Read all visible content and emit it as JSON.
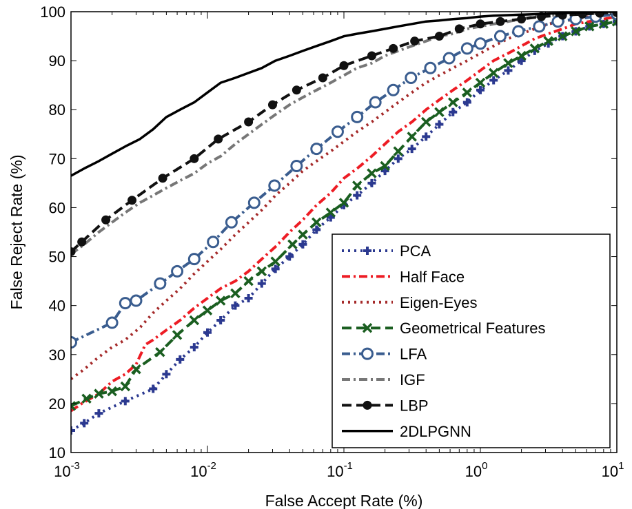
{
  "chart_data": {
    "type": "line",
    "xlabel": "False Accept Rate (%)",
    "ylabel": "False Reject Rate (%)",
    "x_scale": "log",
    "xlim": [
      0.001,
      10
    ],
    "ylim": [
      10,
      100
    ],
    "x_ticks": [
      {
        "value": 0.001,
        "base": "10",
        "exp": "-3"
      },
      {
        "value": 0.01,
        "base": "10",
        "exp": "-2"
      },
      {
        "value": 0.1,
        "base": "10",
        "exp": "-1"
      },
      {
        "value": 1,
        "base": "10",
        "exp": "0"
      },
      {
        "value": 10,
        "base": "10",
        "exp": "1"
      }
    ],
    "y_ticks": [
      10,
      20,
      30,
      40,
      50,
      60,
      70,
      80,
      90,
      100
    ],
    "legend_position": "bottom-right",
    "series": [
      {
        "name": "PCA",
        "color": "#2b3990",
        "dash": "dotted",
        "marker": "plus",
        "x": [
          0.001,
          0.00125,
          0.0016,
          0.0025,
          0.004,
          0.005,
          0.0063,
          0.008,
          0.01,
          0.0125,
          0.016,
          0.02,
          0.025,
          0.0315,
          0.04,
          0.05,
          0.063,
          0.08,
          0.1,
          0.125,
          0.16,
          0.2,
          0.25,
          0.315,
          0.4,
          0.5,
          0.63,
          0.8,
          1,
          1.25,
          1.6,
          2,
          2.5,
          3.15,
          4,
          5,
          6.3,
          8,
          10
        ],
        "y": [
          14.5,
          16,
          18,
          20.5,
          23,
          26,
          29,
          31.5,
          34.5,
          37,
          40,
          41.5,
          44.5,
          47.5,
          50,
          52.5,
          55.5,
          58,
          60.5,
          62.5,
          65,
          67.5,
          70,
          72,
          74.5,
          77,
          79.5,
          81.5,
          84,
          86,
          88,
          90,
          92,
          93.5,
          95,
          96,
          97,
          97.5,
          98
        ]
      },
      {
        "name": "Half Face",
        "color": "#ed1c24",
        "dash": "dashdot",
        "marker": "none",
        "x": [
          0.001,
          0.0012,
          0.0016,
          0.002,
          0.0025,
          0.003,
          0.0035,
          0.004,
          0.005,
          0.0063,
          0.008,
          0.01,
          0.0125,
          0.016,
          0.02,
          0.025,
          0.0315,
          0.04,
          0.05,
          0.063,
          0.08,
          0.1,
          0.125,
          0.16,
          0.2,
          0.25,
          0.315,
          0.4,
          0.5,
          0.63,
          0.8,
          1,
          1.25,
          1.6,
          2,
          2.5,
          3.15,
          4,
          5,
          6.3,
          8,
          10
        ],
        "y": [
          18.5,
          20,
          22,
          24.5,
          26,
          28,
          32,
          33,
          35,
          37,
          39.5,
          41.5,
          43.5,
          45,
          47,
          49.5,
          52,
          55,
          57.5,
          60.5,
          63,
          66,
          68,
          70.5,
          73,
          75.5,
          77.5,
          80,
          82,
          84,
          86,
          88,
          90,
          91.5,
          93,
          94.5,
          95.5,
          96.5,
          97.5,
          98,
          98.5,
          99
        ]
      },
      {
        "name": "Eigen-Eyes",
        "color": "#a52a2a",
        "dash": "dotted",
        "marker": "none",
        "x": [
          0.001,
          0.00125,
          0.0016,
          0.002,
          0.0025,
          0.0032,
          0.004,
          0.005,
          0.0063,
          0.008,
          0.01,
          0.0125,
          0.016,
          0.02,
          0.025,
          0.0315,
          0.04,
          0.05,
          0.063,
          0.08,
          0.1,
          0.125,
          0.16,
          0.2,
          0.25,
          0.315,
          0.4,
          0.5,
          0.63,
          0.8,
          1,
          1.25,
          1.6,
          2,
          2.5,
          3.15,
          4,
          5,
          6.3,
          8,
          10
        ],
        "y": [
          25,
          27,
          29.5,
          31.5,
          33,
          35.5,
          38.5,
          41,
          43.5,
          46.5,
          49,
          51.5,
          54.5,
          57,
          59.5,
          62.5,
          65,
          67.5,
          69.5,
          71.5,
          73.5,
          75.5,
          77.5,
          79.5,
          81.5,
          83.5,
          85.5,
          87,
          88.5,
          90,
          91.5,
          93,
          94.5,
          95.5,
          96.5,
          97.5,
          98,
          98.5,
          99,
          99.2,
          99.5
        ]
      },
      {
        "name": "Geometrical Features",
        "color": "#1a5e20",
        "dash": "dashed",
        "marker": "x",
        "x": [
          0.001,
          0.0013,
          0.0016,
          0.002,
          0.0025,
          0.003,
          0.0045,
          0.006,
          0.008,
          0.01,
          0.0125,
          0.016,
          0.02,
          0.025,
          0.0315,
          0.042,
          0.05,
          0.063,
          0.08,
          0.1,
          0.125,
          0.16,
          0.2,
          0.25,
          0.315,
          0.4,
          0.5,
          0.63,
          0.8,
          1,
          1.25,
          1.6,
          2,
          2.5,
          3.15,
          4,
          5,
          6.3,
          8,
          10
        ],
        "y": [
          19.5,
          21,
          22,
          22.5,
          23.5,
          27,
          30.5,
          34,
          37,
          39,
          41,
          42.5,
          45,
          47,
          49,
          52.5,
          54.5,
          57,
          59,
          61,
          64.5,
          67,
          68.5,
          71.5,
          74.5,
          77.5,
          79.5,
          81.5,
          83.5,
          85.5,
          87.5,
          89.5,
          91,
          92.5,
          94,
          95,
          96,
          97,
          97.5,
          98
        ]
      },
      {
        "name": "LFA",
        "color": "#3a5d8f",
        "dash": "dashdot",
        "marker": "circle",
        "x": [
          0.001,
          0.002,
          0.0025,
          0.003,
          0.0045,
          0.006,
          0.008,
          0.011,
          0.015,
          0.022,
          0.031,
          0.045,
          0.063,
          0.09,
          0.125,
          0.17,
          0.23,
          0.31,
          0.43,
          0.59,
          0.8,
          1,
          1.4,
          1.9,
          2.7,
          3.7,
          5,
          7,
          10
        ],
        "y": [
          32.5,
          36.5,
          40.5,
          41,
          44.5,
          47,
          49.5,
          53,
          57,
          61,
          64.5,
          68.5,
          72,
          75.5,
          78.5,
          81.5,
          84,
          86.5,
          88.5,
          90.5,
          92.5,
          93.5,
          95,
          96,
          97,
          98,
          98.5,
          99,
          99.5
        ]
      },
      {
        "name": "IGF",
        "color": "#777777",
        "dash": "dashdot",
        "marker": "none",
        "x": [
          0.001,
          0.00125,
          0.0016,
          0.002,
          0.0025,
          0.0032,
          0.004,
          0.005,
          0.0063,
          0.008,
          0.01,
          0.0125,
          0.016,
          0.02,
          0.025,
          0.0315,
          0.04,
          0.05,
          0.063,
          0.08,
          0.1,
          0.125,
          0.16,
          0.2,
          0.25,
          0.315,
          0.4,
          0.5,
          0.63,
          0.8,
          1,
          1.25,
          1.6,
          2,
          2.5,
          3.15,
          4,
          5,
          6.3,
          8,
          10
        ],
        "y": [
          50.5,
          52.5,
          55,
          57,
          59,
          61,
          62.5,
          64,
          65.5,
          67,
          69,
          70.5,
          73,
          75,
          77,
          79,
          81,
          82.5,
          84,
          85.5,
          87,
          88.5,
          89.5,
          91,
          92,
          93,
          94,
          95,
          95.5,
          96.5,
          97,
          97.5,
          98,
          98.5,
          99,
          99.2,
          99.4,
          99.5,
          99.6,
          99.8,
          100
        ]
      },
      {
        "name": "LBP",
        "color": "#111111",
        "dash": "dashed",
        "marker": "dot",
        "x": [
          0.001,
          0.0012,
          0.0018,
          0.0028,
          0.0047,
          0.008,
          0.012,
          0.02,
          0.03,
          0.045,
          0.07,
          0.1,
          0.16,
          0.23,
          0.33,
          0.5,
          0.7,
          1,
          1.4,
          2,
          2.8,
          4,
          5.6,
          7.5,
          10
        ],
        "y": [
          51,
          53,
          57.5,
          61.5,
          66,
          70,
          74,
          77.5,
          81,
          84,
          86.5,
          89,
          91,
          92.5,
          94,
          95,
          96.5,
          97.5,
          98,
          98.5,
          99,
          99.3,
          99.5,
          99.7,
          99.8
        ]
      },
      {
        "name": "2DLPGNN",
        "color": "#000000",
        "dash": "solid",
        "marker": "none",
        "x": [
          0.001,
          0.00125,
          0.0016,
          0.002,
          0.0025,
          0.0032,
          0.004,
          0.005,
          0.0063,
          0.008,
          0.01,
          0.0125,
          0.016,
          0.02,
          0.025,
          0.0315,
          0.04,
          0.05,
          0.063,
          0.08,
          0.1,
          0.125,
          0.16,
          0.2,
          0.25,
          0.315,
          0.4,
          0.5,
          0.63,
          0.8,
          1,
          1.25,
          1.6,
          2,
          2.5,
          3.15,
          4,
          5,
          6.3,
          8,
          10
        ],
        "y": [
          66.5,
          68,
          69.5,
          71,
          72.5,
          74,
          76,
          78.5,
          80,
          81.5,
          83.5,
          85.5,
          86.5,
          87.5,
          88.5,
          90,
          91,
          92,
          93,
          94,
          95,
          95.5,
          96,
          96.5,
          97,
          97.5,
          98,
          98.2,
          98.5,
          98.7,
          99,
          99.2,
          99.3,
          99.4,
          99.5,
          99.6,
          99.7,
          99.8,
          99.9,
          100,
          100
        ]
      }
    ]
  }
}
